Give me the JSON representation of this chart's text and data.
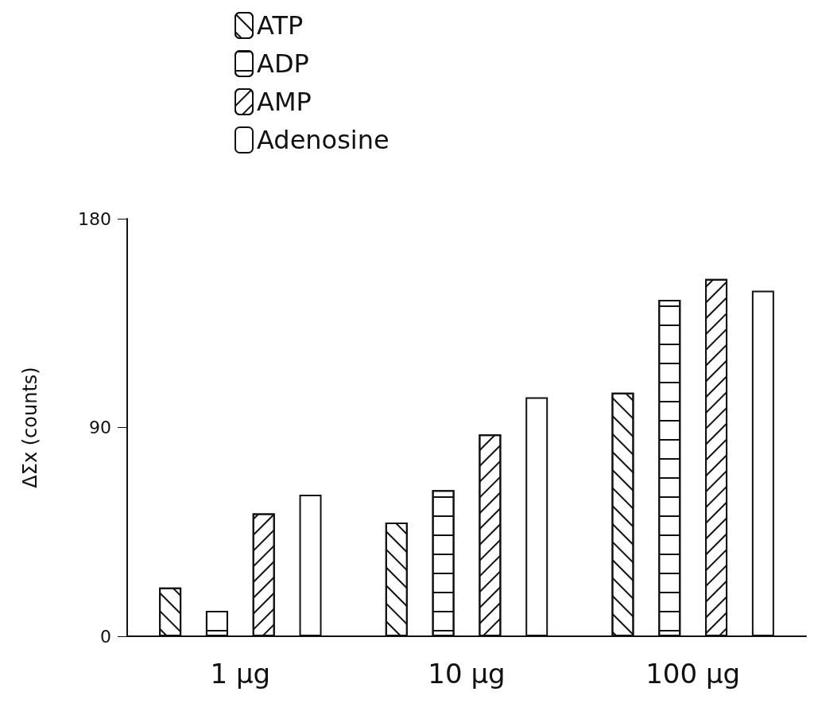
{
  "chart_data": {
    "type": "bar",
    "ylabel": "ΔΣx (counts)",
    "categories": [
      "1 µg",
      "10 µg",
      "100 µg"
    ],
    "series": [
      {
        "name": "ATP",
        "color": "#ffffff",
        "values": [
          21,
          49,
          105
        ]
      },
      {
        "name": "ADP",
        "color": "#ffffff",
        "values": [
          11,
          63,
          145
        ]
      },
      {
        "name": "AMP",
        "color": "#ffffff",
        "values": [
          53,
          87,
          154
        ]
      },
      {
        "name": "Adenosine",
        "color": "#ffffff",
        "values": [
          61,
          103,
          149
        ]
      }
    ],
    "ylim": [
      0,
      180
    ],
    "yticks": [
      0,
      90,
      180
    ],
    "grid": false,
    "legend": "top left"
  }
}
